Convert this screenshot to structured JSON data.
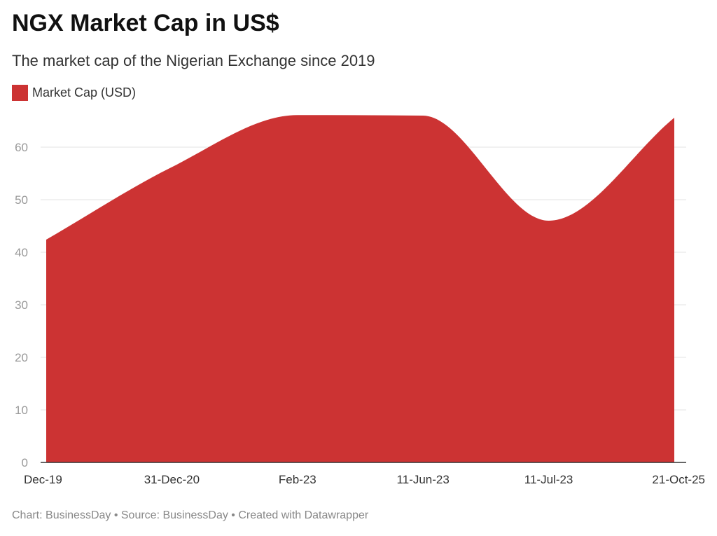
{
  "chart_data": {
    "type": "area",
    "title": "NGX Market Cap in US$",
    "subtitle": "The market cap of the Nigerian Exchange since 2019",
    "categories": [
      "Dec-19",
      "31-Dec-20",
      "Feb-23",
      "11-Jun-23",
      "11-Jul-23",
      "21-Oct-25"
    ],
    "series": [
      {
        "name": "Market Cap (USD)",
        "values": [
          42.4,
          56.2,
          66.1,
          66.0,
          46.0,
          65.6
        ],
        "color": "#cc3333"
      }
    ],
    "ylim": [
      0,
      70
    ],
    "yticks": [
      0,
      10,
      20,
      30,
      40,
      50,
      60
    ],
    "grid": true,
    "legend": "top-left",
    "xlabel": "",
    "ylabel": "",
    "footer": "Chart: BusinessDay • Source: BusinessDay • Created with Datawrapper"
  }
}
